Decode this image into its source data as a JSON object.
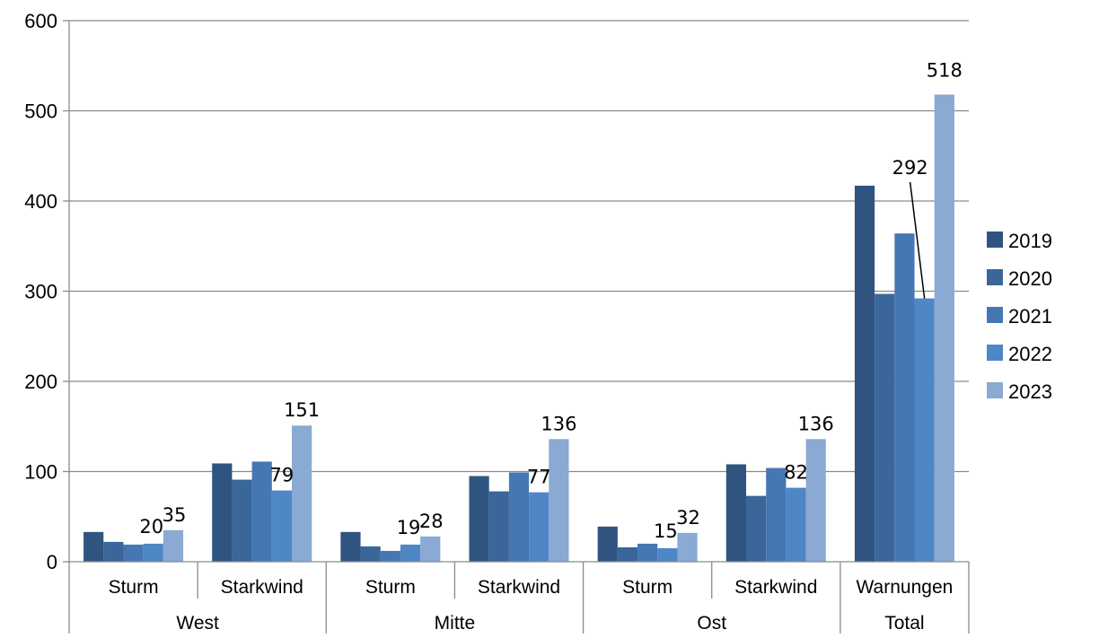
{
  "chart_data": {
    "type": "bar",
    "title": "",
    "xlabel": "",
    "ylabel": "",
    "ylim": [
      0,
      600
    ],
    "yticks": [
      0,
      100,
      200,
      300,
      400,
      500,
      600
    ],
    "grid": true,
    "legend_position": "right",
    "groups": [
      {
        "label": "West",
        "categories": [
          "Sturm",
          "Starkwind"
        ]
      },
      {
        "label": "Mitte",
        "categories": [
          "Sturm",
          "Starkwind"
        ]
      },
      {
        "label": "Ost",
        "categories": [
          "Sturm",
          "Starkwind"
        ]
      },
      {
        "label": "Total",
        "categories": [
          "Warnungen"
        ]
      }
    ],
    "categories": [
      "Sturm",
      "Starkwind",
      "Sturm",
      "Starkwind",
      "Sturm",
      "Starkwind",
      "Warnungen"
    ],
    "series": [
      {
        "name": "2019",
        "color": "#2f5480",
        "values": [
          33,
          109,
          33,
          95,
          39,
          108,
          417
        ]
      },
      {
        "name": "2020",
        "color": "#3a6699",
        "values": [
          22,
          91,
          17,
          78,
          16,
          73,
          297
        ]
      },
      {
        "name": "2021",
        "color": "#4577b4",
        "values": [
          19,
          111,
          12,
          99,
          20,
          104,
          364
        ]
      },
      {
        "name": "2022",
        "color": "#4f86c6",
        "values": [
          20,
          79,
          19,
          77,
          15,
          82,
          292
        ]
      },
      {
        "name": "2023",
        "color": "#8aa9d3",
        "values": [
          35,
          151,
          28,
          136,
          32,
          136,
          518
        ]
      }
    ],
    "data_labels": [
      {
        "series": 3,
        "category": 0,
        "text": "20"
      },
      {
        "series": 4,
        "category": 0,
        "text": "35"
      },
      {
        "series": 3,
        "category": 1,
        "text": "79"
      },
      {
        "series": 4,
        "category": 1,
        "text": "151"
      },
      {
        "series": 3,
        "category": 2,
        "text": "19"
      },
      {
        "series": 4,
        "category": 2,
        "text": "28"
      },
      {
        "series": 3,
        "category": 3,
        "text": "77"
      },
      {
        "series": 4,
        "category": 3,
        "text": "136"
      },
      {
        "series": 3,
        "category": 4,
        "text": "15"
      },
      {
        "series": 4,
        "category": 4,
        "text": "32"
      },
      {
        "series": 3,
        "category": 5,
        "text": "82"
      },
      {
        "series": 4,
        "category": 5,
        "text": "136"
      },
      {
        "series": 3,
        "category": 6,
        "text": "292"
      },
      {
        "series": 4,
        "category": 6,
        "text": "518"
      }
    ]
  }
}
